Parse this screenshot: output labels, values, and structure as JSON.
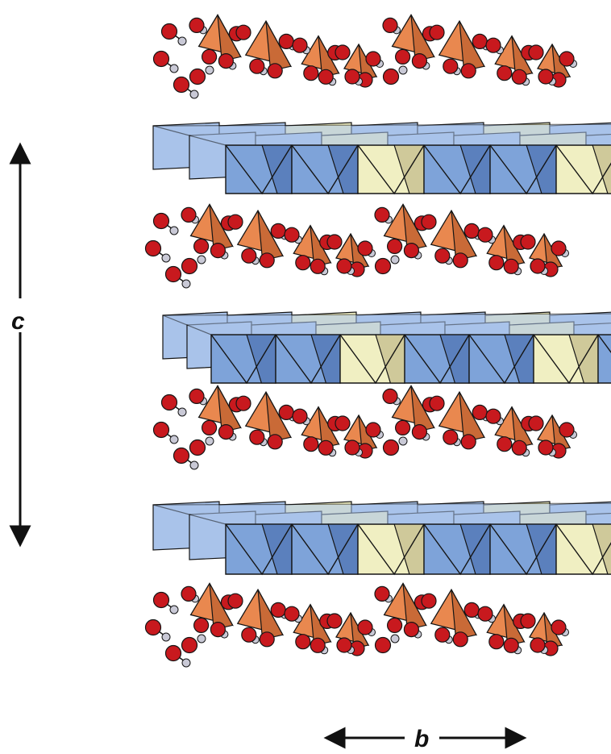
{
  "axes": {
    "vertical_label": "c",
    "horizontal_label": "b"
  },
  "structure": {
    "octahedral_layer_count": 3,
    "water_tetrahedra_layer_count": 4,
    "blocks_per_octahedral_layer": 7,
    "yellow_block_positions": [
      2,
      5
    ]
  },
  "colors": {
    "octahedron_blue": "#7ea3d9",
    "octahedron_blue_dark": "#5b80bd",
    "octahedron_blue_light": "#a9c3ea",
    "octahedron_yellow": "#f0efc2",
    "tetrahedron_orange": "#e9884f",
    "tetrahedron_orange_dark": "#c96a37",
    "oxygen_red": "#c8191e",
    "hydrogen_grey": "#c9c9d6",
    "outline": "#151515"
  }
}
